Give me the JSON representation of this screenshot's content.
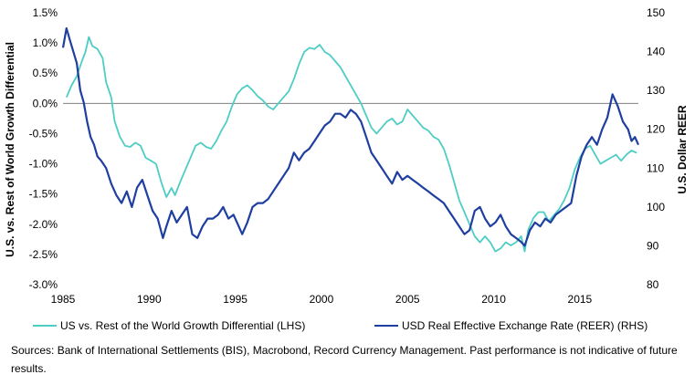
{
  "chart_data": {
    "type": "line",
    "title": "",
    "ylabel": "U.S. vs. Rest of World Growth Differential",
    "y2label": "U.S. Dollar REER",
    "xlim": [
      1985,
      2018.4
    ],
    "ylim": [
      -3.0,
      1.5
    ],
    "y2lim": [
      80,
      150
    ],
    "x_ticks": [
      1985,
      1990,
      1995,
      2000,
      2005,
      2010,
      2015
    ],
    "x_tick_labels": [
      "1985",
      "1990",
      "1995",
      "2000",
      "2005",
      "2010",
      "2015"
    ],
    "y_ticks": [
      1.5,
      1.0,
      0.5,
      0.0,
      -0.5,
      -1.0,
      -1.5,
      -2.0,
      -2.5,
      -3.0
    ],
    "y_tick_labels": [
      "1.5%",
      "1.0%",
      "0.5%",
      "0.0%",
      "-0.5%",
      "-1.0%",
      "-1.5%",
      "-2.0%",
      "-2.5%",
      "-3.0%"
    ],
    "y2_ticks": [
      150,
      140,
      130,
      120,
      110,
      100,
      90,
      80
    ],
    "y2_tick_labels": [
      "150",
      "140",
      "130",
      "120",
      "110",
      "100",
      "90",
      "80"
    ],
    "legend_position": "bottom",
    "series": [
      {
        "name": "US vs. Rest of the World Growth Differential (LHS)",
        "axis": "left",
        "color": "#4ecdc4",
        "points": [
          [
            1985.2,
            0.1
          ],
          [
            1985.5,
            0.3
          ],
          [
            1985.8,
            0.45
          ],
          [
            1986.1,
            0.7
          ],
          [
            1986.3,
            0.85
          ],
          [
            1986.5,
            1.1
          ],
          [
            1986.7,
            0.95
          ],
          [
            1987.0,
            0.9
          ],
          [
            1987.3,
            0.75
          ],
          [
            1987.5,
            0.35
          ],
          [
            1987.8,
            0.1
          ],
          [
            1988.0,
            -0.3
          ],
          [
            1988.3,
            -0.55
          ],
          [
            1988.6,
            -0.7
          ],
          [
            1988.9,
            -0.72
          ],
          [
            1989.2,
            -0.65
          ],
          [
            1989.5,
            -0.7
          ],
          [
            1989.8,
            -0.9
          ],
          [
            1990.1,
            -0.95
          ],
          [
            1990.4,
            -1.0
          ],
          [
            1990.7,
            -1.3
          ],
          [
            1991.0,
            -1.55
          ],
          [
            1991.3,
            -1.4
          ],
          [
            1991.5,
            -1.52
          ],
          [
            1991.8,
            -1.3
          ],
          [
            1992.1,
            -1.1
          ],
          [
            1992.4,
            -0.9
          ],
          [
            1992.7,
            -0.7
          ],
          [
            1993.0,
            -0.65
          ],
          [
            1993.3,
            -0.72
          ],
          [
            1993.6,
            -0.75
          ],
          [
            1993.9,
            -0.62
          ],
          [
            1994.2,
            -0.45
          ],
          [
            1994.5,
            -0.3
          ],
          [
            1994.8,
            -0.05
          ],
          [
            1995.1,
            0.15
          ],
          [
            1995.4,
            0.25
          ],
          [
            1995.7,
            0.3
          ],
          [
            1996.0,
            0.22
          ],
          [
            1996.3,
            0.12
          ],
          [
            1996.6,
            0.05
          ],
          [
            1996.9,
            -0.05
          ],
          [
            1997.2,
            -0.1
          ],
          [
            1997.5,
            0.0
          ],
          [
            1997.8,
            0.1
          ],
          [
            1998.1,
            0.2
          ],
          [
            1998.4,
            0.4
          ],
          [
            1998.7,
            0.65
          ],
          [
            1999.0,
            0.85
          ],
          [
            1999.3,
            0.92
          ],
          [
            1999.6,
            0.9
          ],
          [
            1999.9,
            0.97
          ],
          [
            2000.2,
            0.85
          ],
          [
            2000.5,
            0.8
          ],
          [
            2000.8,
            0.7
          ],
          [
            2001.1,
            0.6
          ],
          [
            2001.4,
            0.45
          ],
          [
            2001.7,
            0.3
          ],
          [
            2002.0,
            0.15
          ],
          [
            2002.3,
            0.0
          ],
          [
            2002.6,
            -0.2
          ],
          [
            2002.9,
            -0.4
          ],
          [
            2003.2,
            -0.5
          ],
          [
            2003.5,
            -0.4
          ],
          [
            2003.8,
            -0.3
          ],
          [
            2004.1,
            -0.25
          ],
          [
            2004.4,
            -0.35
          ],
          [
            2004.7,
            -0.3
          ],
          [
            2005.0,
            -0.1
          ],
          [
            2005.3,
            -0.2
          ],
          [
            2005.6,
            -0.3
          ],
          [
            2005.9,
            -0.4
          ],
          [
            2006.2,
            -0.45
          ],
          [
            2006.5,
            -0.55
          ],
          [
            2006.8,
            -0.6
          ],
          [
            2007.1,
            -0.75
          ],
          [
            2007.4,
            -1.0
          ],
          [
            2007.7,
            -1.3
          ],
          [
            2008.0,
            -1.6
          ],
          [
            2008.3,
            -1.8
          ],
          [
            2008.6,
            -2.0
          ],
          [
            2008.9,
            -2.2
          ],
          [
            2009.2,
            -2.3
          ],
          [
            2009.5,
            -2.2
          ],
          [
            2009.8,
            -2.3
          ],
          [
            2010.1,
            -2.45
          ],
          [
            2010.4,
            -2.4
          ],
          [
            2010.7,
            -2.3
          ],
          [
            2011.0,
            -2.35
          ],
          [
            2011.3,
            -2.3
          ],
          [
            2011.6,
            -2.2
          ],
          [
            2011.8,
            -2.45
          ],
          [
            2012.0,
            -2.1
          ],
          [
            2012.3,
            -1.9
          ],
          [
            2012.6,
            -1.8
          ],
          [
            2012.9,
            -1.8
          ],
          [
            2013.2,
            -1.95
          ],
          [
            2013.5,
            -1.85
          ],
          [
            2013.8,
            -1.75
          ],
          [
            2014.1,
            -1.6
          ],
          [
            2014.4,
            -1.4
          ],
          [
            2014.7,
            -1.1
          ],
          [
            2015.0,
            -0.9
          ],
          [
            2015.3,
            -0.75
          ],
          [
            2015.6,
            -0.7
          ],
          [
            2015.9,
            -0.85
          ],
          [
            2016.2,
            -1.0
          ],
          [
            2016.5,
            -0.95
          ],
          [
            2016.8,
            -0.9
          ],
          [
            2017.1,
            -0.85
          ],
          [
            2017.4,
            -0.95
          ],
          [
            2017.7,
            -0.85
          ],
          [
            2018.0,
            -0.78
          ],
          [
            2018.3,
            -0.82
          ]
        ]
      },
      {
        "name": "USD Real Effective Exchange Rate (REER) (RHS)",
        "axis": "right",
        "color": "#1f3fa0",
        "points": [
          [
            1985.0,
            141
          ],
          [
            1985.2,
            146
          ],
          [
            1985.4,
            143
          ],
          [
            1985.6,
            140
          ],
          [
            1985.8,
            137
          ],
          [
            1986.0,
            130
          ],
          [
            1986.2,
            127
          ],
          [
            1986.4,
            122
          ],
          [
            1986.6,
            118
          ],
          [
            1986.8,
            116
          ],
          [
            1987.0,
            113
          ],
          [
            1987.2,
            112
          ],
          [
            1987.5,
            110
          ],
          [
            1987.8,
            106
          ],
          [
            1988.1,
            103
          ],
          [
            1988.4,
            101
          ],
          [
            1988.7,
            104
          ],
          [
            1989.0,
            100
          ],
          [
            1989.3,
            105
          ],
          [
            1989.6,
            107
          ],
          [
            1989.9,
            103
          ],
          [
            1990.2,
            99
          ],
          [
            1990.5,
            97
          ],
          [
            1990.8,
            92
          ],
          [
            1991.0,
            95
          ],
          [
            1991.3,
            99
          ],
          [
            1991.6,
            96
          ],
          [
            1991.9,
            98
          ],
          [
            1992.2,
            100
          ],
          [
            1992.5,
            93
          ],
          [
            1992.8,
            92
          ],
          [
            1993.1,
            95
          ],
          [
            1993.4,
            97
          ],
          [
            1993.7,
            97
          ],
          [
            1994.0,
            98
          ],
          [
            1994.3,
            100
          ],
          [
            1994.6,
            97
          ],
          [
            1994.9,
            98
          ],
          [
            1995.2,
            95
          ],
          [
            1995.4,
            93
          ],
          [
            1995.7,
            96
          ],
          [
            1996.0,
            100
          ],
          [
            1996.3,
            101
          ],
          [
            1996.6,
            101
          ],
          [
            1996.9,
            102
          ],
          [
            1997.2,
            104
          ],
          [
            1997.5,
            106
          ],
          [
            1997.8,
            108
          ],
          [
            1998.1,
            110
          ],
          [
            1998.4,
            114
          ],
          [
            1998.7,
            112
          ],
          [
            1999.0,
            114
          ],
          [
            1999.3,
            115
          ],
          [
            1999.6,
            117
          ],
          [
            1999.9,
            119
          ],
          [
            2000.2,
            121
          ],
          [
            2000.5,
            122
          ],
          [
            2000.8,
            124
          ],
          [
            2001.1,
            124
          ],
          [
            2001.4,
            123
          ],
          [
            2001.7,
            125
          ],
          [
            2002.0,
            124
          ],
          [
            2002.3,
            122
          ],
          [
            2002.6,
            118
          ],
          [
            2002.9,
            114
          ],
          [
            2003.2,
            112
          ],
          [
            2003.5,
            110
          ],
          [
            2003.8,
            108
          ],
          [
            2004.1,
            106
          ],
          [
            2004.4,
            109
          ],
          [
            2004.7,
            107
          ],
          [
            2005.0,
            108
          ],
          [
            2005.3,
            107
          ],
          [
            2005.6,
            106
          ],
          [
            2005.9,
            105
          ],
          [
            2006.2,
            104
          ],
          [
            2006.5,
            103
          ],
          [
            2006.8,
            102
          ],
          [
            2007.1,
            101
          ],
          [
            2007.4,
            99
          ],
          [
            2007.7,
            97
          ],
          [
            2008.0,
            95
          ],
          [
            2008.3,
            93
          ],
          [
            2008.6,
            94
          ],
          [
            2008.9,
            99
          ],
          [
            2009.2,
            100
          ],
          [
            2009.5,
            97
          ],
          [
            2009.8,
            95
          ],
          [
            2010.1,
            96
          ],
          [
            2010.4,
            98
          ],
          [
            2010.7,
            95
          ],
          [
            2011.0,
            93
          ],
          [
            2011.3,
            92
          ],
          [
            2011.6,
            91
          ],
          [
            2011.8,
            90
          ],
          [
            2012.1,
            94
          ],
          [
            2012.4,
            96
          ],
          [
            2012.7,
            95
          ],
          [
            2013.0,
            97
          ],
          [
            2013.3,
            96
          ],
          [
            2013.6,
            98
          ],
          [
            2013.9,
            99
          ],
          [
            2014.2,
            100
          ],
          [
            2014.5,
            101
          ],
          [
            2014.8,
            108
          ],
          [
            2015.1,
            113
          ],
          [
            2015.4,
            116
          ],
          [
            2015.7,
            118
          ],
          [
            2016.0,
            116
          ],
          [
            2016.3,
            120
          ],
          [
            2016.6,
            123
          ],
          [
            2016.9,
            129
          ],
          [
            2017.2,
            126
          ],
          [
            2017.5,
            122
          ],
          [
            2017.8,
            120
          ],
          [
            2018.0,
            117
          ],
          [
            2018.2,
            118
          ],
          [
            2018.4,
            116
          ]
        ]
      }
    ]
  },
  "footnote": "Sources: Bank of International Settlements (BIS), Macrobond, Record Currency Management. Past performance is not indicative of future results."
}
